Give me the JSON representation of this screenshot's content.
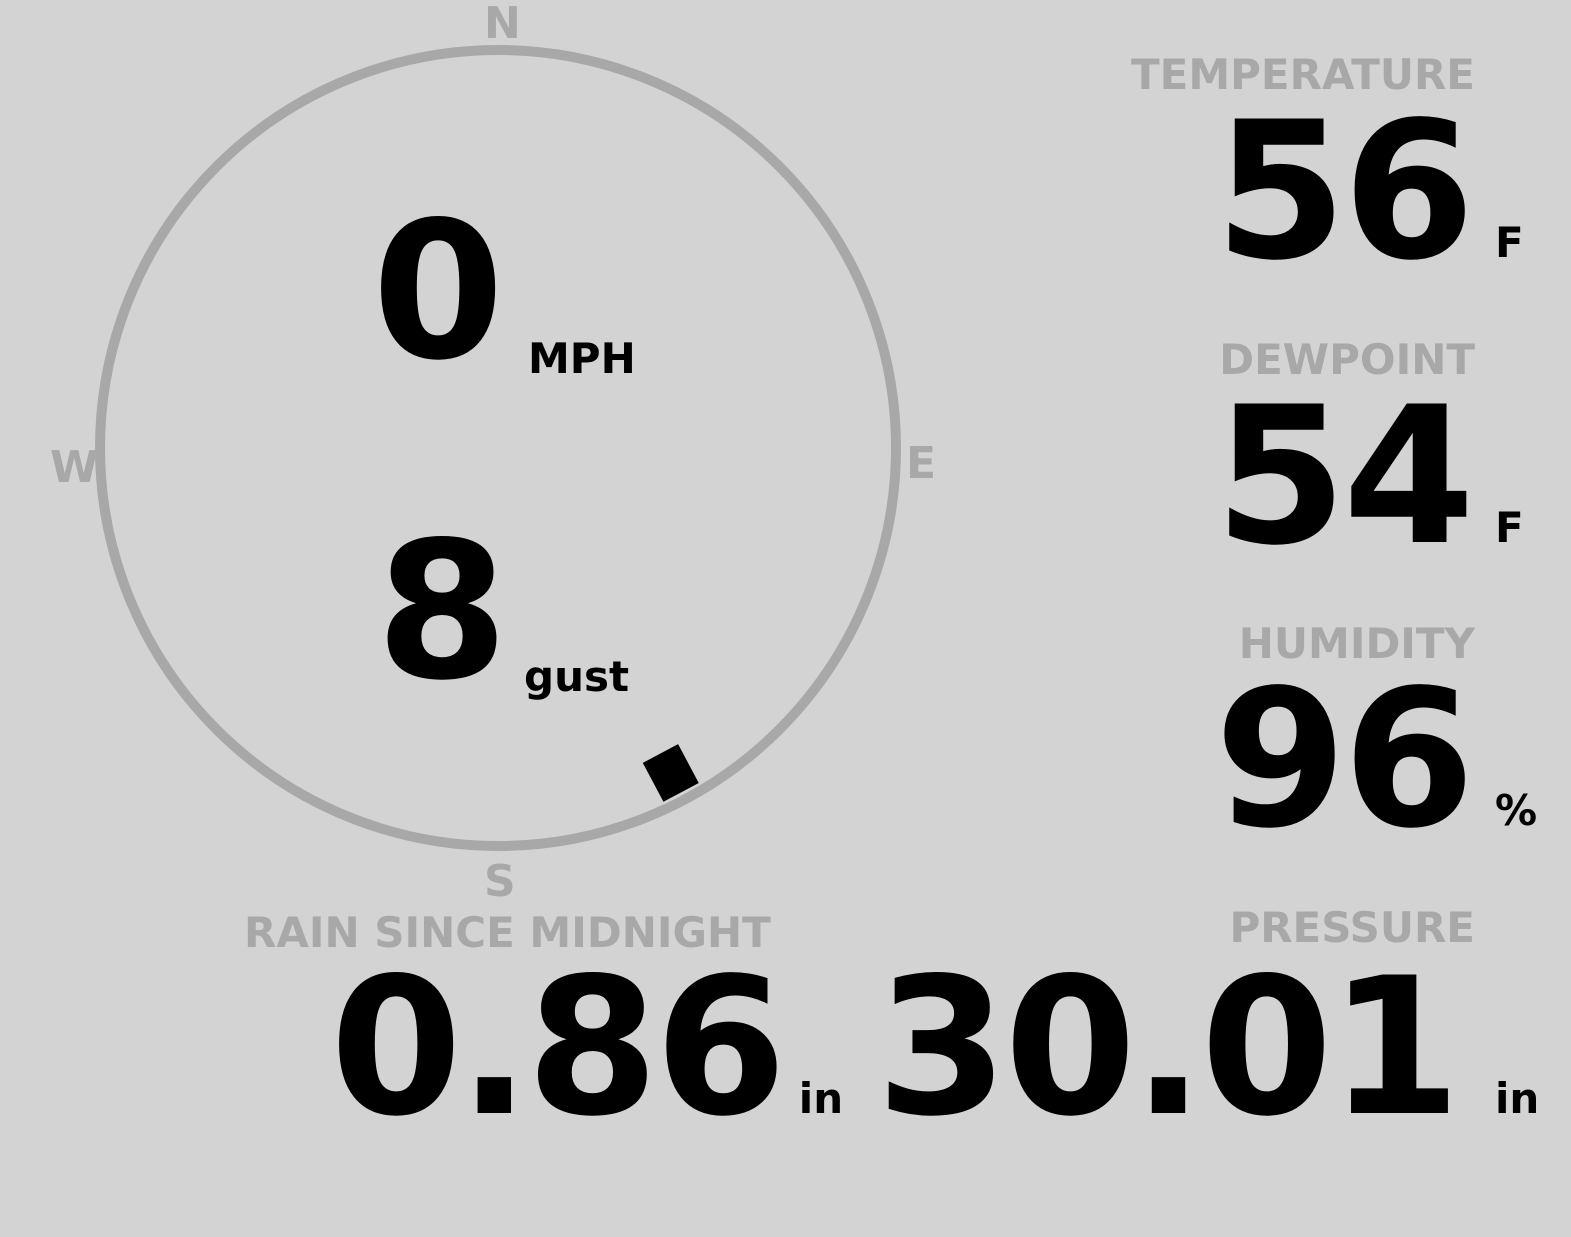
{
  "compass": {
    "north": "N",
    "south": "S",
    "east": "E",
    "west": "W",
    "wind_direction_deg": 152,
    "ring_color": "#a8a8a8"
  },
  "wind": {
    "speed": "0",
    "speed_unit": "MPH",
    "gust": "8",
    "gust_unit": "gust"
  },
  "temperature": {
    "label": "TEMPERATURE",
    "value": "56",
    "unit": "F"
  },
  "dewpoint": {
    "label": "DEWPOINT",
    "value": "54",
    "unit": "F"
  },
  "humidity": {
    "label": "HUMIDITY",
    "value": "96",
    "unit": "%"
  },
  "rain": {
    "label": "RAIN SINCE MIDNIGHT",
    "value": "0.86",
    "unit": "in"
  },
  "pressure": {
    "label": "PRESSURE",
    "value": "30.01",
    "unit": "in"
  },
  "colors": {
    "background": "#d3d3d3",
    "label": "#a8a8a8",
    "value": "#000000"
  }
}
